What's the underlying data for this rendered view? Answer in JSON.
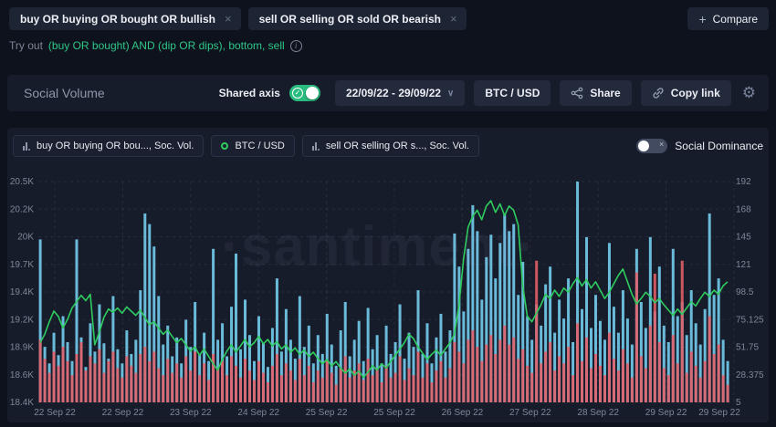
{
  "colors": {
    "page_bg": "#0e121c",
    "card_bg": "#171c2a",
    "chip_bg": "#1d2433",
    "button_bg": "#232a3c",
    "accent_green": "#2abb7f",
    "link_green": "#2fc787",
    "buy_bar": "#6fc3e4",
    "sell_bar": "#e75f66",
    "price_line": "#2ecc5e",
    "muted_text": "#8f97aa",
    "grid": "rgba(139,147,168,0.14)"
  },
  "top_bar": {
    "tags": [
      {
        "label": "buy OR buying OR bought OR bullish"
      },
      {
        "label": "sell OR selling OR sold OR bearish"
      }
    ],
    "close_symbol": "×",
    "compare_plus": "+",
    "compare_label": "Compare"
  },
  "tryout": {
    "prefix": "Try out",
    "link": "(buy OR bought) AND (dip OR dips), bottom, sell"
  },
  "header": {
    "title": "Social Volume",
    "shared_axis_label": "Shared axis",
    "date_range": "22/09/22 - 29/09/22",
    "date_chevron": "∨",
    "asset_pair": "BTC / USD",
    "share_label": "Share",
    "copy_link_label": "Copy link",
    "gear_symbol": "⚙"
  },
  "legend": {
    "items": [
      {
        "label": "buy OR buying OR bou..., Soc. Vol.",
        "icon": "bar-chart-icon"
      },
      {
        "label": "BTC / USD",
        "icon": "green-ring-icon"
      },
      {
        "label": "sell OR selling OR s..., Soc. Vol.",
        "icon": "bar-chart-icon"
      }
    ],
    "social_dominance_label": "Social Dominance",
    "dominance_off_symbol": "×"
  },
  "watermark": "·santiment·",
  "chart_data": {
    "type": "bar",
    "title": "Social Volume with BTC/USD price overlay, 22 Sep 22 - 29 Sep 22",
    "grid": true,
    "left_axis": {
      "labels": [
        "20.5K",
        "20.2K",
        "20K",
        "19.7K",
        "19.4K",
        "19.2K",
        "18.9K",
        "18.6K",
        "18.4K"
      ],
      "min": 18412.5,
      "max": 20512.5
    },
    "right_axis": {
      "labels": [
        "192",
        "168",
        "145",
        "121",
        "98.5",
        "75.125",
        "51.75",
        "28.375",
        "5"
      ],
      "min": 5,
      "max": 192
    },
    "x_ticks": [
      "22 Sep 22",
      "22 Sep 22",
      "23 Sep 22",
      "24 Sep 22",
      "25 Sep 22",
      "25 Sep 22",
      "26 Sep 22",
      "27 Sep 22",
      "28 Sep 22",
      "29 Sep 22",
      "29 Sep 22"
    ],
    "series": [
      {
        "name": "buy OR buying OR bought OR bullish, Soc. Vol.",
        "type": "bar",
        "axis": "right",
        "color": "#6fc3e4",
        "values": [
          143,
          52,
          38,
          64,
          45,
          78,
          56,
          40,
          143,
          60,
          35,
          72,
          48,
          88,
          55,
          42,
          95,
          50,
          38,
          66,
          46,
          58,
          100,
          165,
          156,
          137,
          95,
          54,
          70,
          44,
          60,
          38,
          75,
          52,
          90,
          46,
          64,
          40,
          135,
          58,
          72,
          44,
          86,
          131,
          50,
          92,
          62,
          40,
          78,
          55,
          35,
          68,
          110,
          48,
          84,
          58,
          42,
          95,
          52,
          70,
          38,
          62,
          46,
          80,
          54,
          36,
          66,
          90,
          44,
          58,
          74,
          40,
          85,
          50,
          62,
          38,
          70,
          46,
          56,
          88,
          42,
          64,
          52,
          100,
          46,
          72,
          38,
          60,
          80,
          48,
          66,
          148,
          120,
          82,
          135,
          172,
          150,
          92,
          128,
          147,
          110,
          140,
          165,
          150,
          156,
          96,
          124,
          78,
          58,
          88,
          70,
          105,
          120,
          64,
          92,
          76,
          110,
          56,
          192,
          84,
          145,
          68,
          96,
          74,
          58,
          140,
          86,
          64,
          100,
          76,
          54,
          135,
          90,
          68,
          145,
          82,
          120,
          70,
          56,
          135,
          78,
          90,
          62,
          100,
          72,
          54,
          84,
          165,
          96,
          110,
          58,
          40
        ]
      },
      {
        "name": "sell OR selling OR sold OR bearish, Soc. Vol.",
        "type": "bar",
        "axis": "right",
        "color": "#e75f66",
        "values": [
          58,
          42,
          30,
          48,
          36,
          52,
          40,
          28,
          46,
          56,
          32,
          44,
          38,
          50,
          30,
          40,
          48,
          34,
          26,
          44,
          36,
          30,
          46,
          52,
          40,
          48,
          34,
          28,
          42,
          30,
          38,
          26,
          44,
          32,
          48,
          28,
          38,
          24,
          46,
          34,
          40,
          28,
          44,
          36,
          26,
          42,
          32,
          24,
          40,
          30,
          22,
          36,
          46,
          28,
          38,
          32,
          24,
          42,
          28,
          36,
          22,
          32,
          26,
          40,
          30,
          20,
          34,
          44,
          26,
          32,
          38,
          24,
          42,
          28,
          34,
          22,
          36,
          26,
          30,
          44,
          24,
          34,
          28,
          48,
          26,
          38,
          22,
          32,
          40,
          26,
          34,
          56,
          48,
          38,
          58,
          66,
          52,
          40,
          54,
          62,
          46,
          58,
          70,
          54,
          60,
          42,
          50,
          36,
          30,
          125,
          38,
          48,
          56,
          32,
          44,
          38,
          52,
          28,
          72,
          40,
          60,
          34,
          46,
          36,
          28,
          64,
          42,
          32,
          50,
          38,
          26,
          115,
          44,
          34,
          70,
          114,
          56,
          34,
          28,
          62,
          38,
          125,
          30,
          48,
          36,
          26,
          40,
          78,
          46,
          54,
          28,
          20
        ]
      },
      {
        "name": "BTC / USD",
        "type": "line",
        "axis": "left",
        "color": "#2ecc5e",
        "values": [
          18980,
          19060,
          19180,
          19280,
          19230,
          19120,
          19200,
          19310,
          19370,
          19430,
          19380,
          19440,
          18960,
          19080,
          19220,
          19300,
          19270,
          19310,
          19260,
          19320,
          19280,
          19240,
          19290,
          19220,
          19150,
          19180,
          19120,
          19060,
          19100,
          19040,
          18980,
          19020,
          18960,
          18900,
          18940,
          18860,
          18920,
          18850,
          18780,
          18720,
          18820,
          18900,
          18960,
          18890,
          18950,
          19010,
          18940,
          18980,
          19040,
          18970,
          19010,
          18950,
          18990,
          18920,
          18960,
          18890,
          18930,
          18870,
          18910,
          18850,
          18890,
          18830,
          18780,
          18820,
          18760,
          18800,
          18740,
          18690,
          18730,
          18670,
          18710,
          18650,
          18700,
          18760,
          18720,
          18780,
          18740,
          18800,
          18860,
          18920,
          18980,
          19060,
          19020,
          18940,
          18880,
          18820,
          18870,
          18910,
          18860,
          18920,
          18980,
          19060,
          19340,
          19780,
          20080,
          20180,
          20240,
          20150,
          20280,
          20330,
          20220,
          20300,
          20190,
          20280,
          20240,
          20100,
          19520,
          19230,
          19180,
          19260,
          19340,
          19440,
          19400,
          19480,
          19420,
          19500,
          19460,
          19540,
          19600,
          19520,
          19580,
          19500,
          19560,
          19480,
          19400,
          19460,
          19540,
          19620,
          19680,
          19560,
          19440,
          19350,
          19400,
          19460,
          19420,
          19360,
          19400,
          19340,
          19290,
          19240,
          19300,
          19250,
          19310,
          19370,
          19330,
          19400,
          19460,
          19420,
          19480,
          19440,
          19520,
          19560
        ]
      }
    ]
  }
}
